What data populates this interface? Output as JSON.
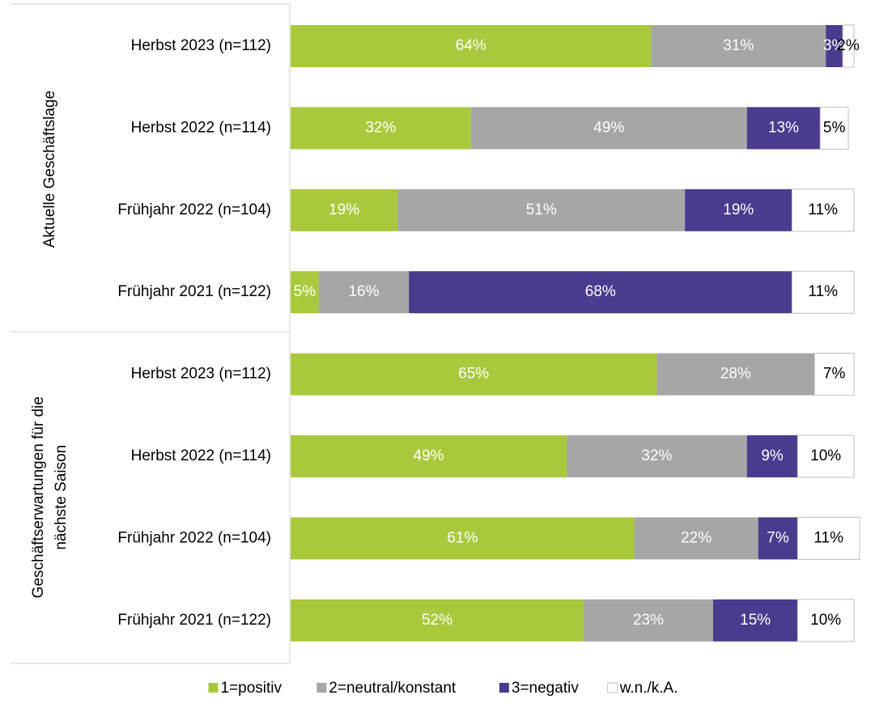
{
  "chart_data": {
    "type": "stacked-bar-horizontal",
    "groups": [
      {
        "label": [
          "Aktuelle Geschäftslage"
        ]
      },
      {
        "label": [
          "Geschäftserwartungen für die",
          "nächste Saison"
        ]
      }
    ],
    "categories": [
      "Herbst 2023 (n=112)",
      "Herbst 2022 (n=114)",
      "Frühjahr 2022 (n=104)",
      "Frühjahr 2021 (n=122)",
      "Herbst 2023 (n=112)",
      "Herbst 2022 (n=114)",
      "Frühjahr 2022 (n=104)",
      "Frühjahr 2021 (n=122)"
    ],
    "xlim": [
      0,
      100
    ],
    "series": [
      {
        "name": "1=positiv",
        "color": "#a9c93d",
        "label_color": "#ffffff",
        "values": [
          64,
          32,
          19,
          5,
          65,
          49,
          61,
          52
        ],
        "value_labels": [
          "64%",
          "32%",
          "19%",
          "5%",
          "65%",
          "49%",
          "61%",
          "52%"
        ]
      },
      {
        "name": "2=neutral/konstant",
        "color": "#a6a6a6",
        "label_color": "#ffffff",
        "values": [
          31,
          49,
          51,
          16,
          28,
          32,
          22,
          23
        ],
        "value_labels": [
          "31%",
          "49%",
          "51%",
          "16%",
          "28%",
          "32%",
          "22%",
          "23%"
        ]
      },
      {
        "name": "3=negativ",
        "color": "#4c3a8e",
        "label_color": "#ffffff",
        "values": [
          3,
          13,
          19,
          68,
          null,
          9,
          7,
          15
        ],
        "value_labels": [
          "3%",
          "13%",
          "19%",
          "68%",
          null,
          "9%",
          "7%",
          "15%"
        ]
      },
      {
        "name": "w.n./k.A.",
        "color": "#ffffff",
        "label_color": "#000000",
        "values": [
          2,
          5,
          11,
          11,
          7,
          10,
          11,
          10
        ],
        "value_labels": [
          "2%",
          "5%",
          "11%",
          "11%",
          "7%",
          "10%",
          "11%",
          "10%"
        ]
      }
    ]
  }
}
